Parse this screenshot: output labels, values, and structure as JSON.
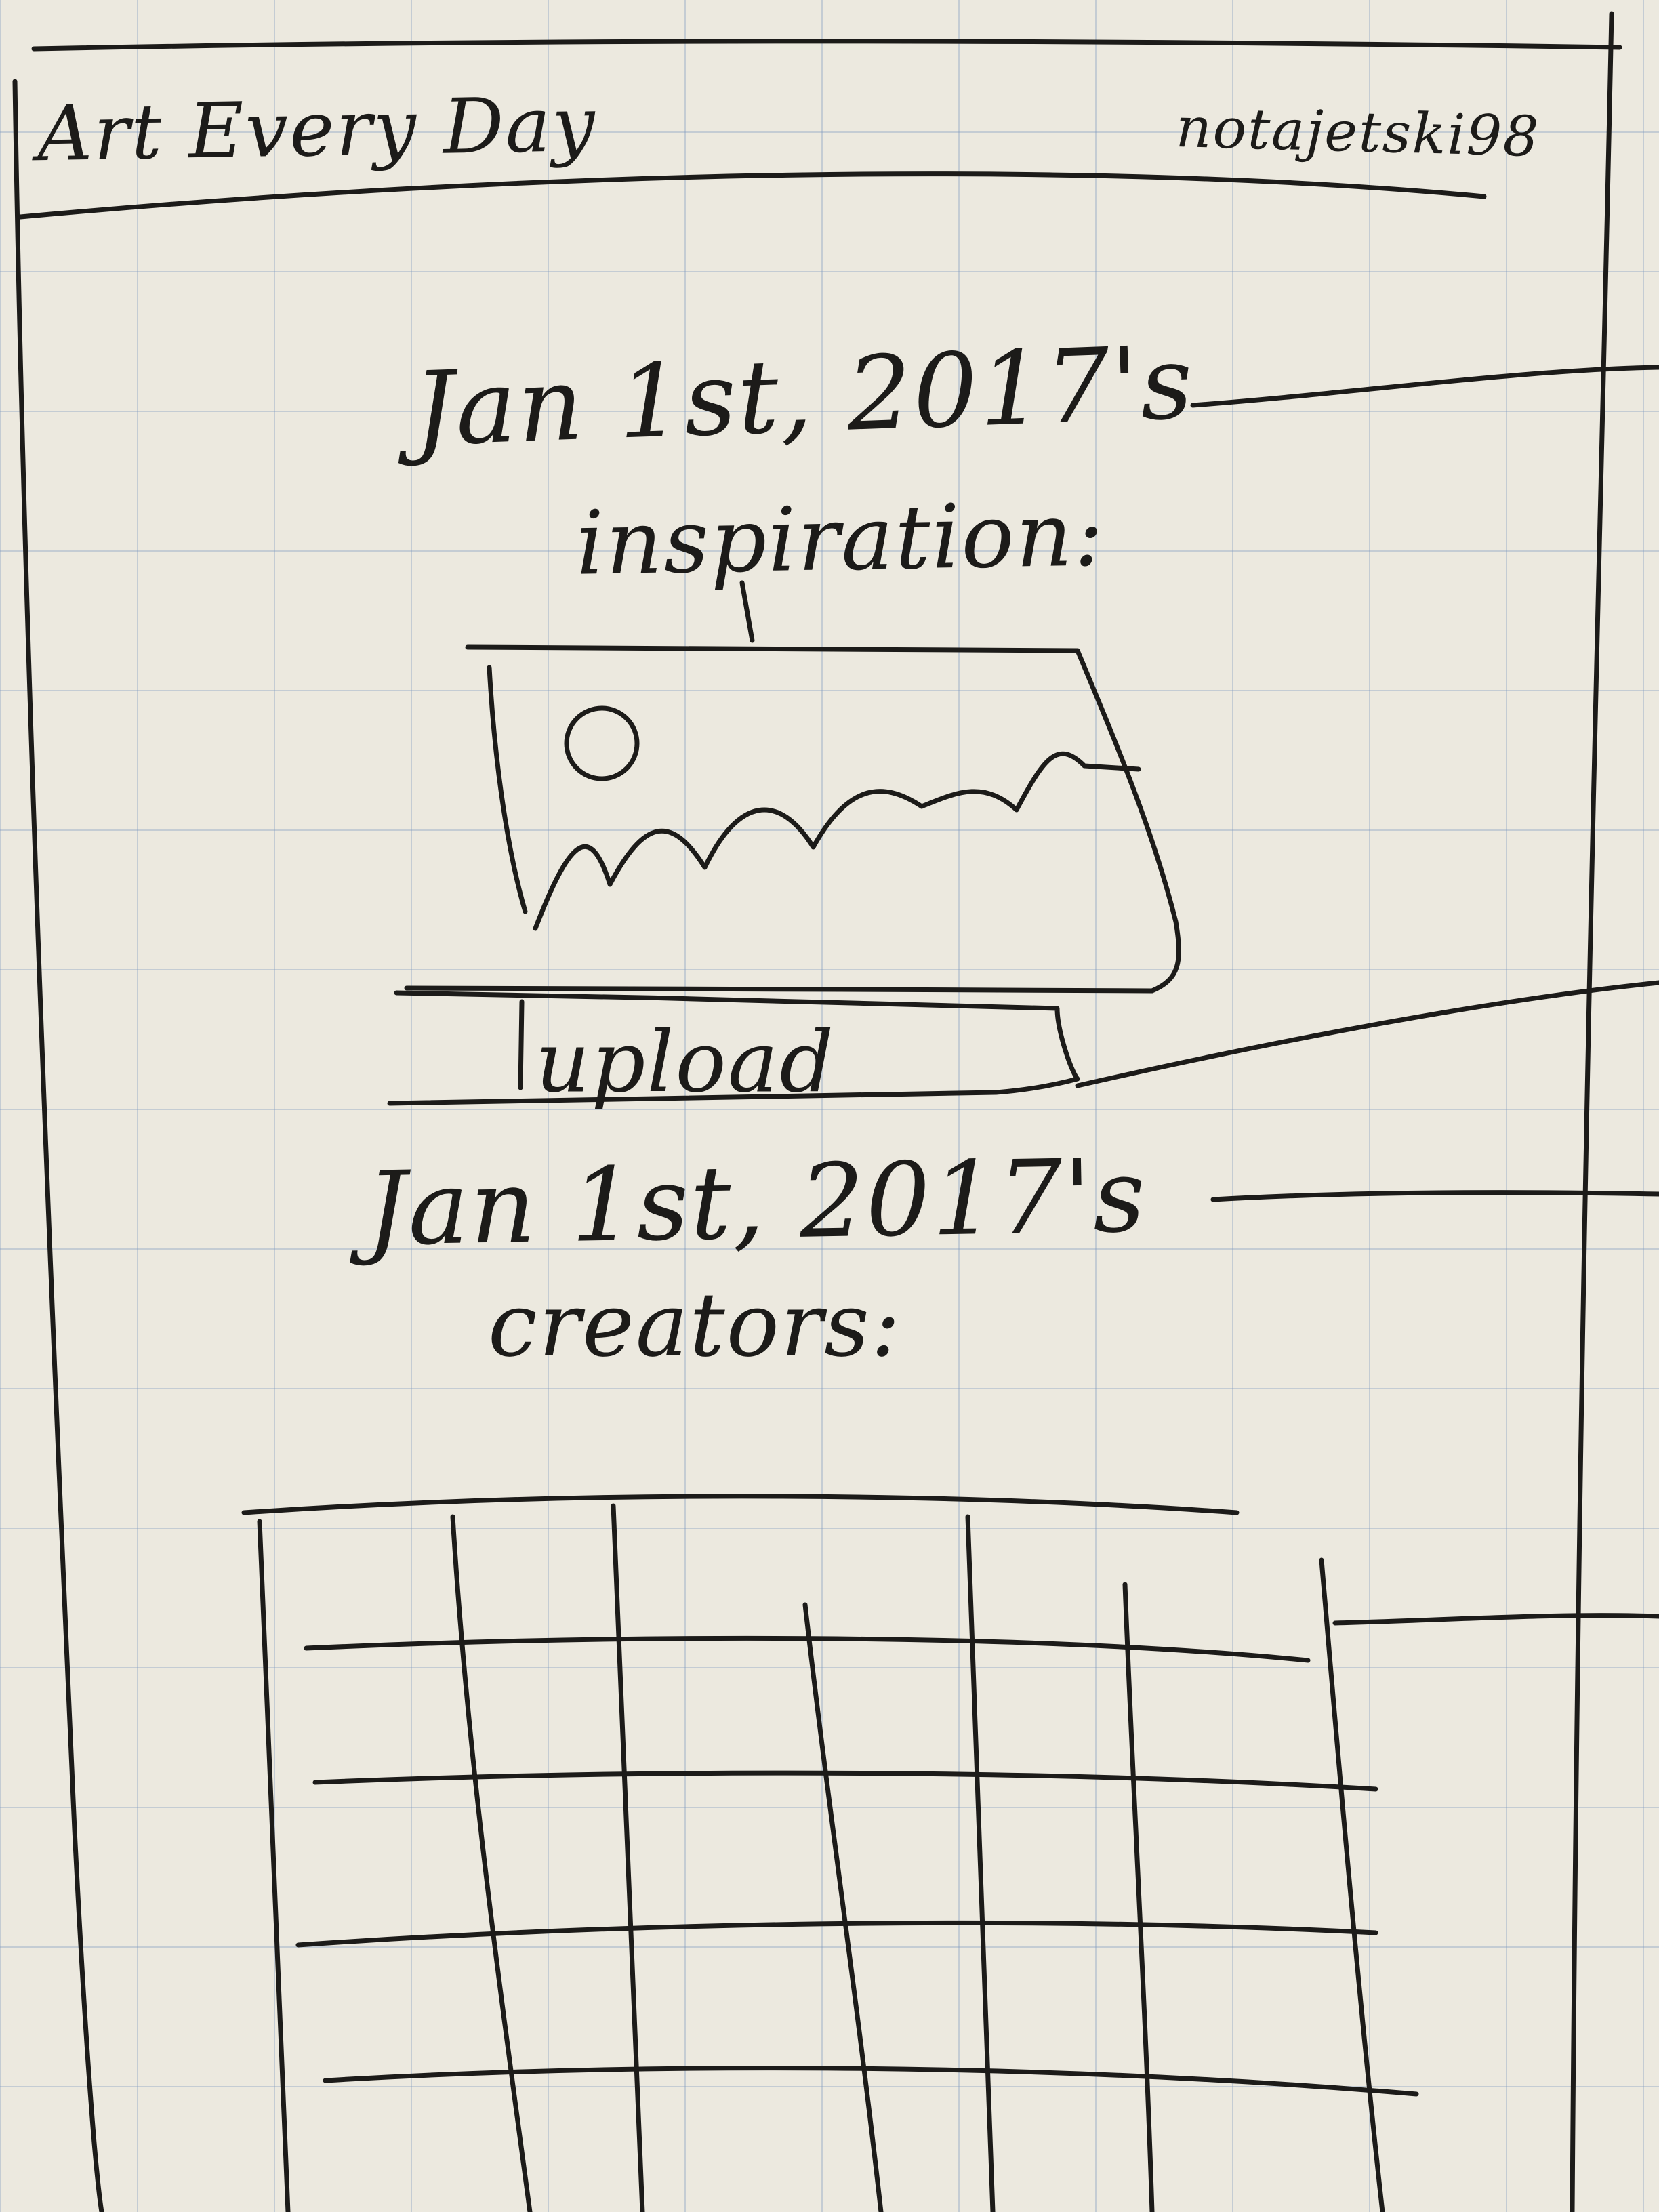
{
  "header": {
    "app_title": "Art Every Day",
    "username": "notajetski98"
  },
  "inspiration": {
    "heading_line1": "Jan 1st, 2017's",
    "heading_line2": "inspiration:",
    "image_icon": "landscape-sketch-icon"
  },
  "upload": {
    "label": "upload"
  },
  "creators": {
    "heading_line1": "Jan 1st, 2017's",
    "heading_line2": "creators:",
    "grid_icon": "creator-grid"
  },
  "colors": {
    "paper": "#ece9df",
    "grid_line": "#7896be",
    "ink": "#1c1b19"
  }
}
